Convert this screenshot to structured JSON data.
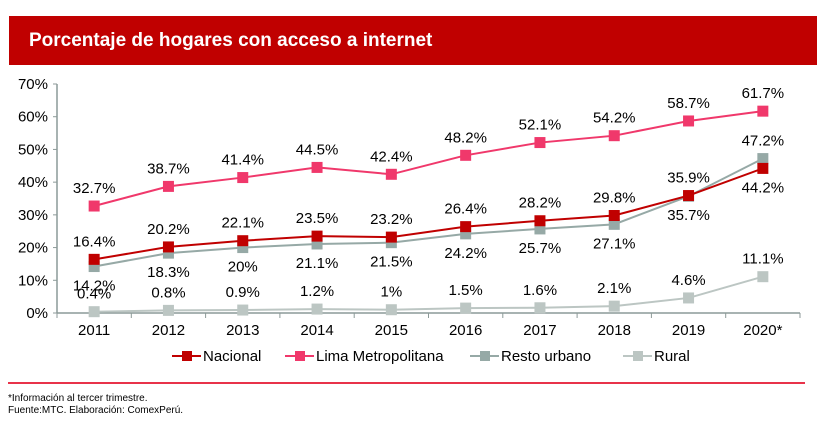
{
  "header": {
    "title": "Porcentaje de hogares con acceso a internet"
  },
  "chart_data": {
    "type": "line",
    "title": "Porcentaje de hogares con acceso a internet",
    "xlabel": "",
    "ylabel": "",
    "categories": [
      "2011",
      "2012",
      "2013",
      "2014",
      "2015",
      "2016",
      "2017",
      "2018",
      "2019",
      "2020*"
    ],
    "ylim": [
      0,
      70
    ],
    "yticks": [
      0,
      10,
      20,
      30,
      40,
      50,
      60,
      70
    ],
    "ytick_labels": [
      "0%",
      "10%",
      "20%",
      "30%",
      "40%",
      "50%",
      "60%",
      "70%"
    ],
    "grid": false,
    "legend_position": "bottom",
    "series": [
      {
        "name": "Nacional",
        "color": "#c00000",
        "values": [
          16.4,
          20.2,
          22.1,
          23.5,
          23.2,
          26.4,
          28.2,
          29.8,
          35.9,
          44.2
        ],
        "labels": [
          "16.4%",
          "20.2%",
          "22.1%",
          "23.5%",
          "23.2%",
          "26.4%",
          "28.2%",
          "29.8%",
          "35.9%",
          "44.2%"
        ],
        "label_pos": [
          "above",
          "above",
          "above",
          "above",
          "above",
          "above",
          "above",
          "above",
          "above",
          "below"
        ]
      },
      {
        "name": "Lima Metropolitana",
        "color": "#f0386b",
        "values": [
          32.7,
          38.7,
          41.4,
          44.5,
          42.4,
          48.2,
          52.1,
          54.2,
          58.7,
          61.7
        ],
        "labels": [
          "32.7%",
          "38.7%",
          "41.4%",
          "44.5%",
          "42.4%",
          "48.2%",
          "52.1%",
          "54.2%",
          "58.7%",
          "61.7%"
        ],
        "label_pos": [
          "above",
          "above",
          "above",
          "above",
          "above",
          "above",
          "above",
          "above",
          "above",
          "above"
        ]
      },
      {
        "name": "Resto urbano",
        "color": "#96a9a6",
        "values": [
          14.2,
          18.3,
          20.0,
          21.1,
          21.5,
          24.2,
          25.7,
          27.1,
          35.7,
          47.2
        ],
        "labels": [
          "14.2%",
          "18.3%",
          "20%",
          "21.1%",
          "21.5%",
          "24.2%",
          "25.7%",
          "27.1%",
          "35.7%",
          "47.2%"
        ],
        "label_pos": [
          "below",
          "below",
          "below",
          "below",
          "below",
          "below",
          "below",
          "below",
          "below",
          "above"
        ]
      },
      {
        "name": "Rural",
        "color": "#bcc6c3",
        "values": [
          0.4,
          0.8,
          0.9,
          1.2,
          1.0,
          1.5,
          1.6,
          2.1,
          4.6,
          11.1
        ],
        "labels": [
          "0.4%",
          "0.8%",
          "0.9%",
          "1.2%",
          "1%",
          "1.5%",
          "1.6%",
          "2.1%",
          "4.6%",
          "11.1%"
        ],
        "label_pos": [
          "above",
          "above",
          "above",
          "above",
          "above",
          "above",
          "above",
          "above",
          "above",
          "above"
        ]
      }
    ]
  },
  "footer": {
    "note": "*Información al tercer trimestre.",
    "source": "Fuente:MTC. Elaboración: ComexPerú."
  },
  "colors": {
    "title_bar": "#c00000",
    "rule": "#e8334a",
    "axis": "#8c9a98"
  }
}
